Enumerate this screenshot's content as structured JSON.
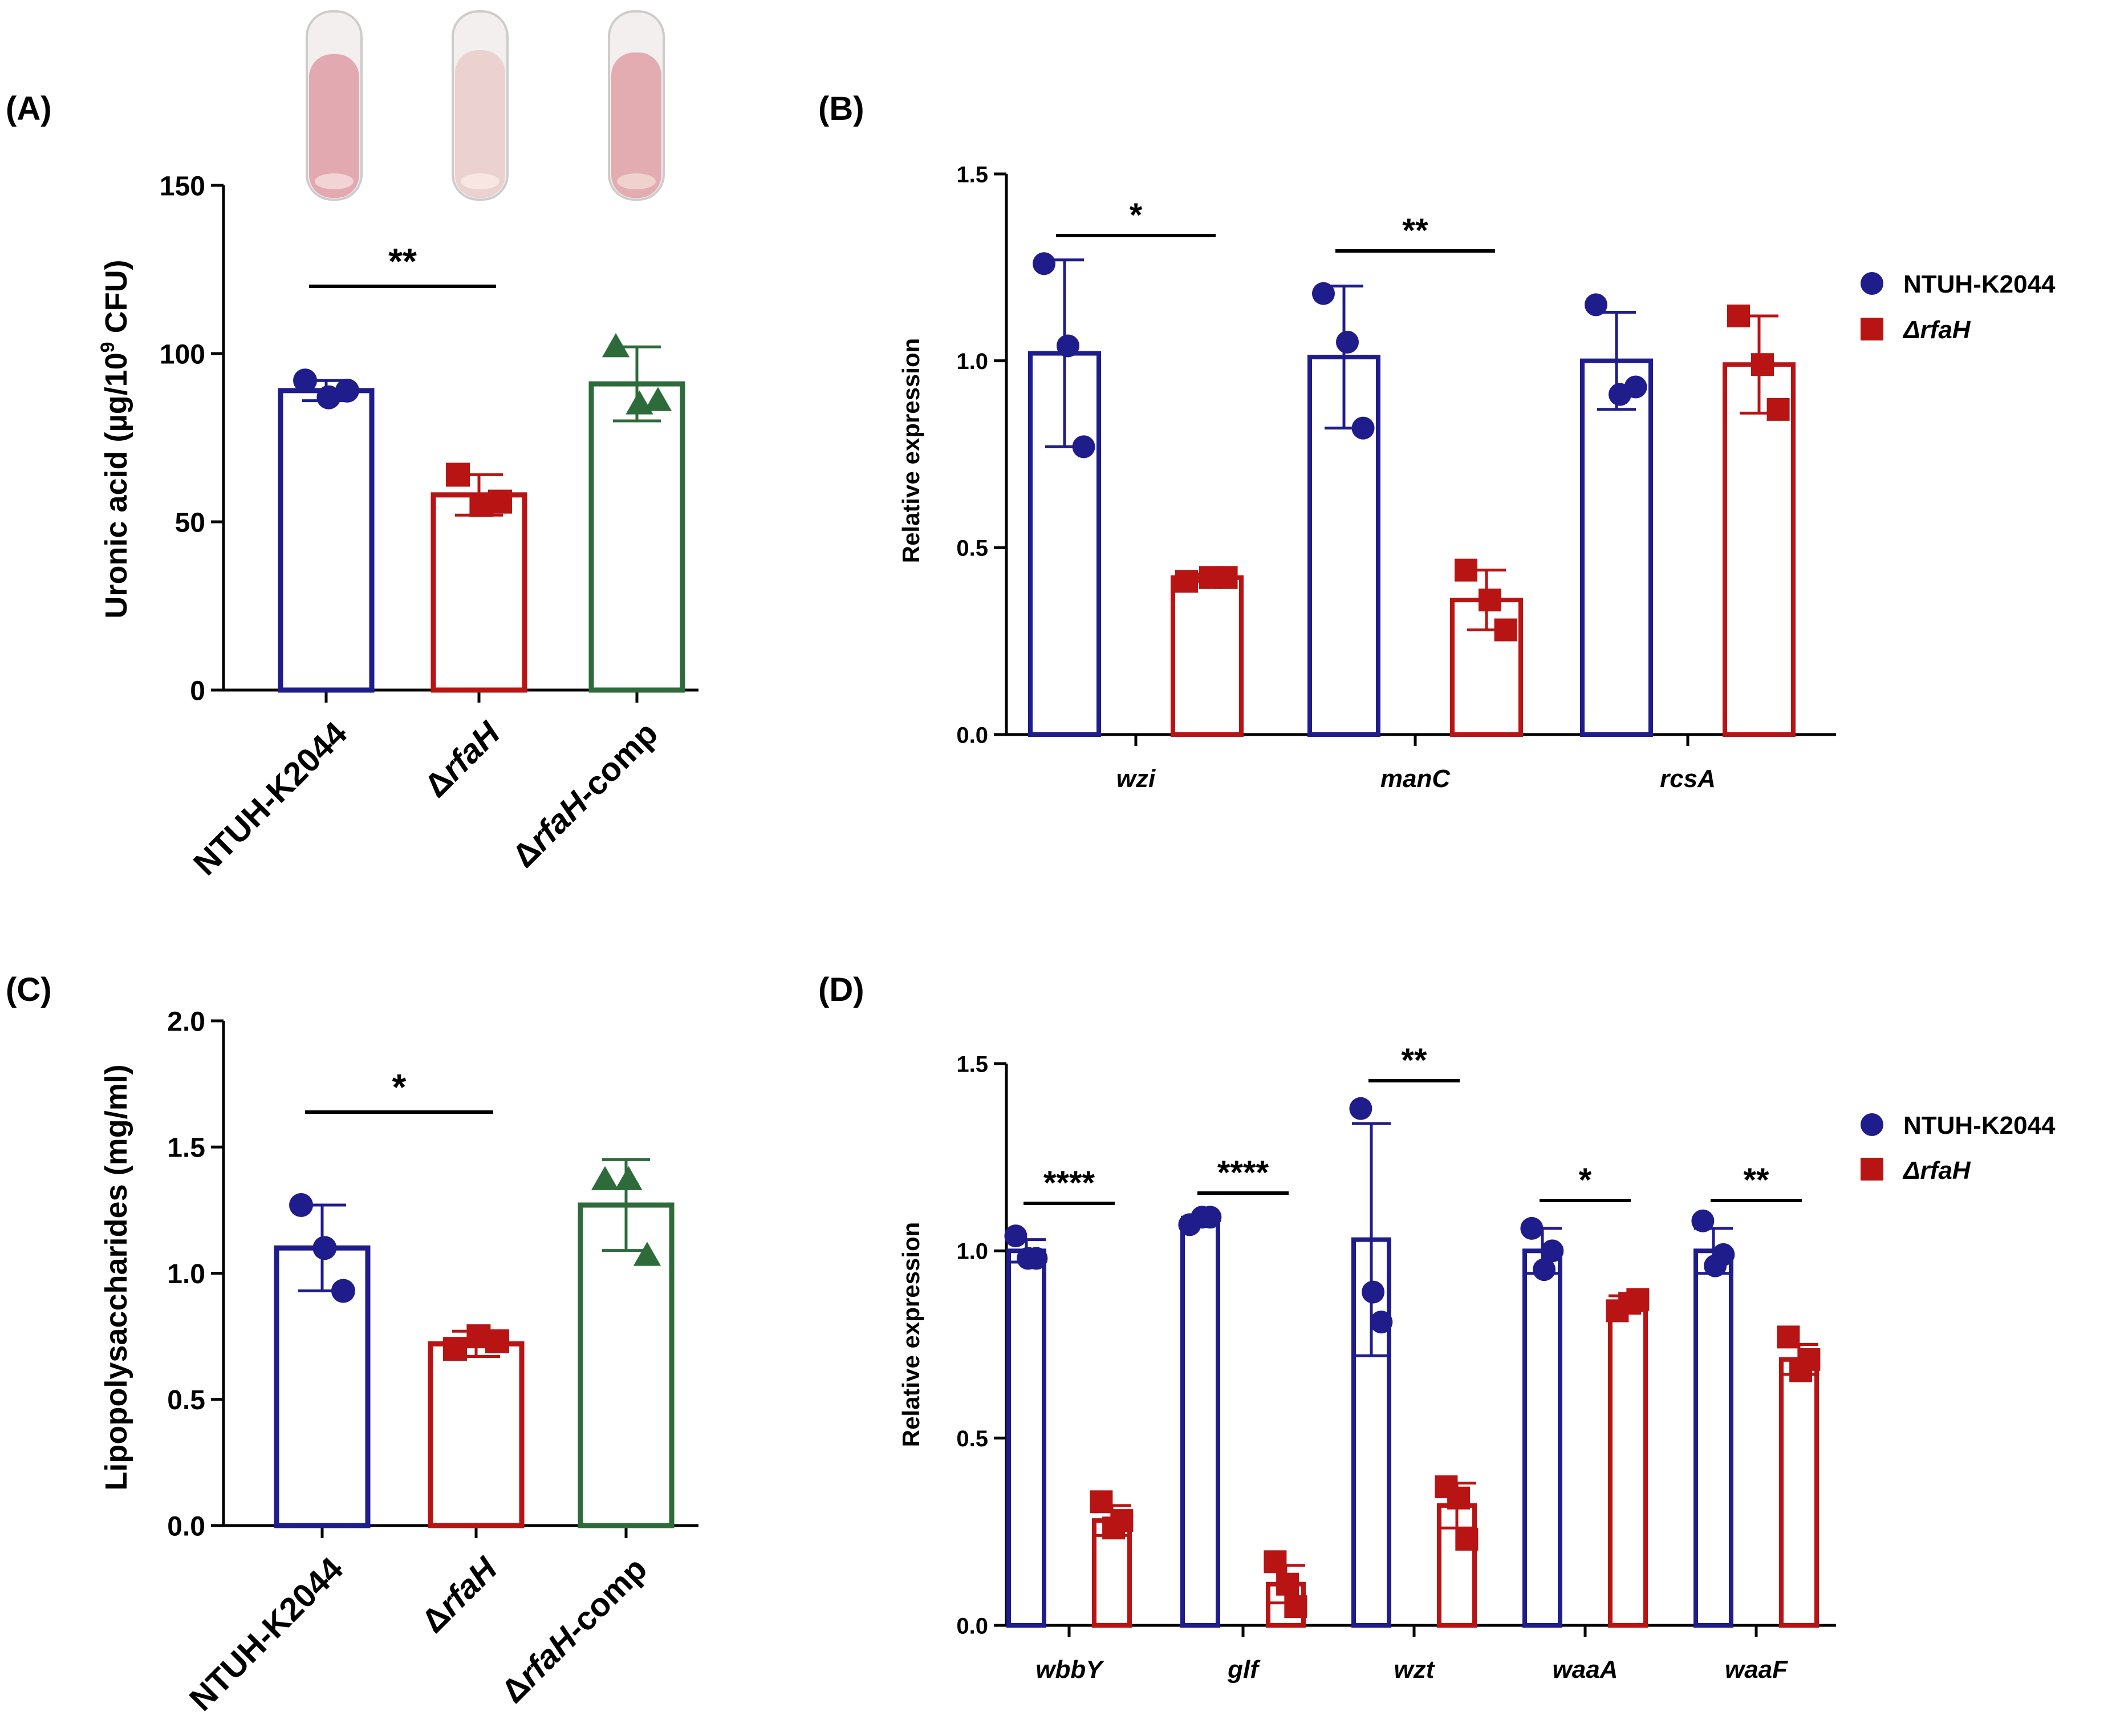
{
  "colors": {
    "wt": "#1f1c8c",
    "mut": "#b81414",
    "comp": "#2e6b3a",
    "axis": "#000000",
    "tube_liquid": "#e8bfc2",
    "tube_glass": "#d9d7d6"
  },
  "legend": {
    "wt_label": "NTUH-K2044",
    "mut_label": "ΔrfaH"
  },
  "chart_data": [
    {
      "panel": "(A)",
      "type": "bar",
      "ylabel_main": "Uronic acid (µg/10",
      "ylabel_sup": "9",
      "ylabel_end": " CFU)",
      "ylim": [
        0,
        150
      ],
      "yticks": [
        0,
        50,
        100,
        150
      ],
      "categories": [
        {
          "prefix": "",
          "gene": "",
          "suffix": "NTUH-K2044"
        },
        {
          "prefix": "Δ",
          "gene": "rfaH",
          "suffix": ""
        },
        {
          "prefix": "Δ",
          "gene": "rfaH",
          "suffix": "-comp"
        }
      ],
      "bars": [
        {
          "mean": 89,
          "sd": 3,
          "points": [
            92,
            87,
            89
          ],
          "series": "wt",
          "marker": "circle"
        },
        {
          "mean": 58,
          "sd": 6,
          "points": [
            64,
            55,
            56
          ],
          "series": "mut",
          "marker": "square"
        },
        {
          "mean": 91,
          "sd": 11,
          "points": [
            102,
            85,
            86
          ],
          "series": "comp",
          "marker": "triangle"
        }
      ],
      "significance": [
        {
          "from": 0,
          "to": 1,
          "label": "**"
        }
      ],
      "inset_tubes": 3
    },
    {
      "panel": "(B)",
      "type": "grouped_bar",
      "ylabel": "Relative expression",
      "ylim": [
        0,
        1.5
      ],
      "yticks": [
        "0.0",
        "0.5",
        "1.0",
        "1.5"
      ],
      "genes": [
        "wzi",
        "manC",
        "rcsA"
      ],
      "series": [
        {
          "name": "NTUH-K2044",
          "key": "wt",
          "marker": "circle",
          "means": [
            1.02,
            1.01,
            1.0
          ],
          "sd": [
            0.25,
            0.19,
            0.13
          ],
          "points": [
            [
              1.26,
              1.04,
              0.77
            ],
            [
              1.18,
              1.05,
              0.82
            ],
            [
              1.15,
              0.91,
              0.93
            ]
          ]
        },
        {
          "name": "ΔrfaH",
          "key": "mut",
          "marker": "square",
          "means": [
            0.42,
            0.36,
            0.99
          ],
          "sd": [
            0.01,
            0.08,
            0.13
          ],
          "points": [
            [
              0.41,
              0.42,
              0.42
            ],
            [
              0.44,
              0.36,
              0.28
            ],
            [
              1.12,
              0.99,
              0.87
            ]
          ]
        }
      ],
      "significance": [
        {
          "gene": 0,
          "label": "*"
        },
        {
          "gene": 1,
          "label": "**"
        }
      ]
    },
    {
      "panel": "(C)",
      "type": "bar",
      "ylabel": "Lipopolysaccharides (mg/ml)",
      "ylim": [
        0,
        2.0
      ],
      "yticks": [
        "0.0",
        "0.5",
        "1.0",
        "1.5",
        "2.0"
      ],
      "categories": [
        {
          "prefix": "",
          "gene": "",
          "suffix": "NTUH-K2044"
        },
        {
          "prefix": "Δ",
          "gene": "rfaH",
          "suffix": ""
        },
        {
          "prefix": "Δ",
          "gene": "rfaH",
          "suffix": "-comp"
        }
      ],
      "bars": [
        {
          "mean": 1.1,
          "sd": 0.17,
          "points": [
            1.27,
            1.1,
            0.93
          ],
          "series": "wt",
          "marker": "circle"
        },
        {
          "mean": 0.72,
          "sd": 0.05,
          "points": [
            0.7,
            0.75,
            0.73
          ],
          "series": "mut",
          "marker": "square"
        },
        {
          "mean": 1.27,
          "sd": 0.18,
          "points": [
            1.37,
            1.37,
            1.07
          ],
          "series": "comp",
          "marker": "triangle"
        }
      ],
      "significance": [
        {
          "from": 0,
          "to": 1,
          "label": "*"
        }
      ]
    },
    {
      "panel": "(D)",
      "type": "grouped_bar",
      "ylabel": "Relative expression",
      "ylim": [
        0,
        1.5
      ],
      "yticks": [
        "0.0",
        "0.5",
        "1.0",
        "1.5"
      ],
      "genes": [
        "wbbY",
        "glf",
        "wzt",
        "waaA",
        "waaF"
      ],
      "series": [
        {
          "name": "NTUH-K2044",
          "key": "wt",
          "marker": "circle",
          "means": [
            1.0,
            1.08,
            1.03,
            1.0,
            1.0
          ],
          "sd": [
            0.03,
            0.01,
            0.31,
            0.06,
            0.06
          ],
          "points": [
            [
              1.04,
              0.98,
              0.98
            ],
            [
              1.07,
              1.09,
              1.09
            ],
            [
              1.38,
              0.89,
              0.81
            ],
            [
              1.06,
              0.95,
              1.0
            ],
            [
              1.08,
              0.96,
              0.99
            ]
          ]
        },
        {
          "name": "ΔrfaH",
          "key": "mut",
          "marker": "square",
          "means": [
            0.28,
            0.11,
            0.32,
            0.86,
            0.71
          ],
          "sd": [
            0.04,
            0.05,
            0.06,
            0.02,
            0.04
          ],
          "points": [
            [
              0.33,
              0.26,
              0.28
            ],
            [
              0.17,
              0.11,
              0.05
            ],
            [
              0.37,
              0.34,
              0.23
            ],
            [
              0.84,
              0.86,
              0.87
            ],
            [
              0.77,
              0.68,
              0.71
            ]
          ]
        }
      ],
      "significance": [
        {
          "gene": 0,
          "label": "****"
        },
        {
          "gene": 1,
          "label": "****"
        },
        {
          "gene": 2,
          "label": "**"
        },
        {
          "gene": 3,
          "label": "*"
        },
        {
          "gene": 4,
          "label": "**"
        }
      ]
    }
  ]
}
